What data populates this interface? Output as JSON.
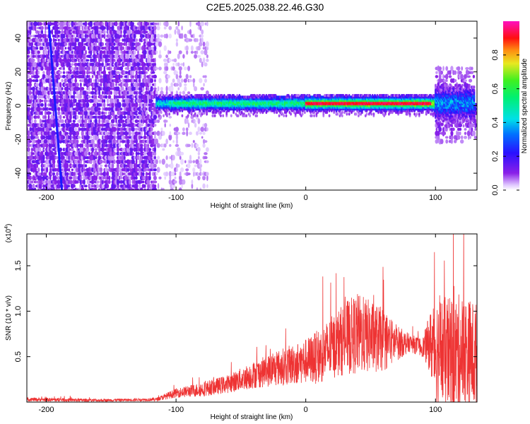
{
  "title": "C2E5.2025.038.22.46.G30",
  "colors": {
    "signal_red": "#ff2020",
    "snr_red": "#ee3333",
    "purple": "#7a1fe0",
    "light_purple": "#c7a6f5",
    "blue": "#1020ff",
    "cyan": "#00d8e8",
    "green": "#20e840",
    "yellow": "#e8e020"
  },
  "colorbar": {
    "label": "Normalized spectral amplitude",
    "ticks": [
      "0.0",
      "0.2",
      "0.4",
      "0.6",
      "0.8"
    ],
    "tick_values": [
      0.0,
      0.2,
      0.4,
      0.6,
      0.8
    ],
    "range": [
      0,
      1
    ]
  },
  "chart_data": [
    {
      "type": "heatmap",
      "title": "",
      "xlabel": "Height of straight line (km)",
      "ylabel": "Frequency (Hz)",
      "xlim": [
        -215,
        132
      ],
      "ylim": [
        -50,
        50
      ],
      "xticks": [
        -200,
        -100,
        0,
        100
      ],
      "xtick_labels": [
        "-200",
        "-100",
        "0",
        "100"
      ],
      "yticks": [
        -40,
        -20,
        0,
        20,
        40
      ],
      "ytick_labels": [
        "-40",
        "-20",
        "0",
        "20",
        "40"
      ],
      "regions": [
        {
          "description": "broadband scattered noise",
          "x_range": [
            -215,
            -115
          ],
          "freq_range": [
            -50,
            50
          ],
          "amplitude": 0.1
        },
        {
          "description": "sparse faint noise",
          "x_range": [
            -115,
            -75
          ],
          "freq_range": [
            -50,
            50
          ],
          "amplitude": 0.05
        },
        {
          "description": "central signal band",
          "x_range": [
            -115,
            100
          ],
          "freq_center": 1,
          "freq_halfwidth": 5,
          "amplitude": 0.5
        },
        {
          "description": "peak signal band",
          "x_range": [
            0,
            100
          ],
          "freq_center": 1.5,
          "amplitude": 0.95
        },
        {
          "description": "end turbulence",
          "x_range": [
            100,
            132
          ],
          "freq_range": [
            -25,
            25
          ],
          "amplitude": 0.25
        }
      ],
      "line_feature": {
        "description": "diagonal line",
        "points": [
          [
            -198,
            48
          ],
          [
            -188,
            -50
          ]
        ]
      }
    },
    {
      "type": "line",
      "title": "",
      "xlabel": "Height of straight line (km)",
      "ylabel": "SNR (10 * v/v)",
      "y_multiplier_label": "(x10",
      "y_multiplier_exponent": "4",
      "xlim": [
        -215,
        132
      ],
      "ylim": [
        0,
        18500
      ],
      "xticks": [
        -200,
        -100,
        0,
        100
      ],
      "xtick_labels": [
        "-200",
        "-100",
        "0",
        "100"
      ],
      "yticks": [
        5000,
        10000,
        15000
      ],
      "ytick_labels": [
        "0.5",
        "1.0",
        "1.5"
      ],
      "series": [
        {
          "x": [
            -215,
            -190,
            -160,
            -130,
            -115,
            -100,
            -80,
            -60,
            -40,
            -20,
            0,
            10,
            20,
            30,
            40,
            50,
            60,
            70,
            80,
            90,
            95,
            100,
            110,
            120,
            132
          ],
          "y": [
            300,
            250,
            200,
            250,
            300,
            1000,
            1400,
            2000,
            3000,
            3800,
            4500,
            5000,
            6000,
            7000,
            7500,
            7200,
            6800,
            6500,
            6500,
            6000,
            6500,
            6000,
            5000,
            5500,
            5000
          ],
          "spread": [
            200,
            200,
            150,
            150,
            200,
            500,
            800,
            1000,
            1500,
            2000,
            2500,
            3000,
            3500,
            4000,
            4500,
            4000,
            3500,
            2000,
            1000,
            1000,
            3000,
            6000,
            6500,
            6500,
            6000
          ]
        }
      ]
    }
  ]
}
